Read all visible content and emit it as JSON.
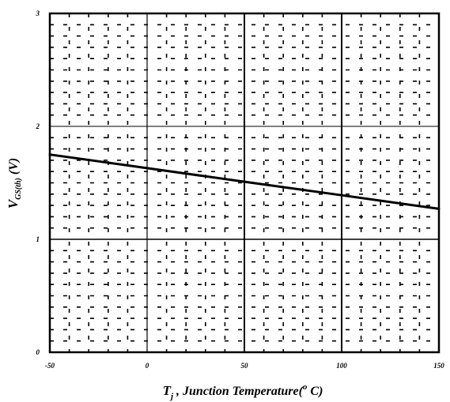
{
  "chart_data": {
    "type": "line",
    "xlabel": {
      "main": "T",
      "sub": "j",
      "rest": " , Junction Temperature(",
      "sup": "o",
      "end": " C)"
    },
    "ylabel": {
      "main": "V",
      "sub": "GS(th)",
      "unit": " (V)"
    },
    "xlim": [
      -50,
      150
    ],
    "ylim": [
      0,
      3
    ],
    "x_ticks": [
      "-50",
      "0",
      "50",
      "100",
      "150"
    ],
    "y_ticks": [
      "0",
      "1",
      "2",
      "3"
    ],
    "grid": true,
    "series": [
      {
        "x": [
          -50,
          0,
          50,
          100,
          150
        ],
        "values": [
          1.75,
          1.63,
          1.51,
          1.39,
          1.27
        ]
      }
    ]
  },
  "colors": {
    "line": "#000000",
    "grid": "#000000",
    "background": "#ffffff"
  }
}
